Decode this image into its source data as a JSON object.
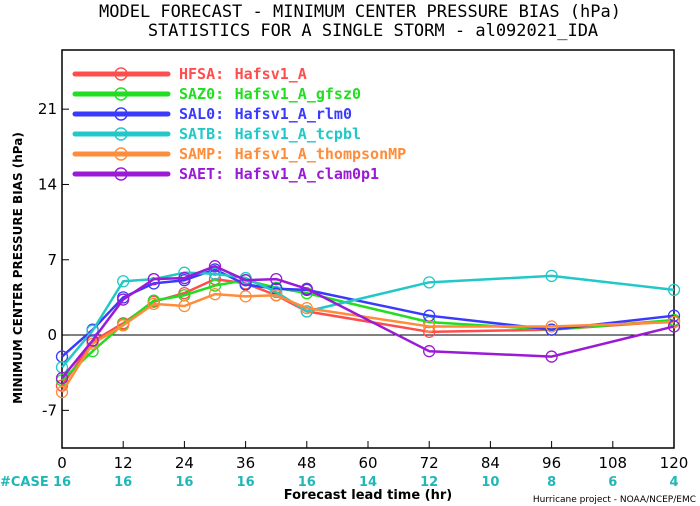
{
  "chart_data": {
    "type": "line",
    "title": "MODEL FORECAST - MINIMUM CENTER PRESSURE BIAS (hPa)",
    "subtitle": "STATISTICS FOR A SINGLE STORM - al092021_IDA",
    "xlabel": "Forecast lead time (hr)",
    "ylabel": "MINIMUM CENTER PRESSURE BIAS (hPa)",
    "xlim": [
      0,
      120
    ],
    "ylim": [
      -10.5,
      26.5
    ],
    "x_ticks": [
      0,
      12,
      24,
      36,
      48,
      60,
      72,
      84,
      96,
      108,
      120
    ],
    "y_ticks": [
      -7,
      0,
      7,
      14,
      21
    ],
    "zero_line": true,
    "legend_position": "top-left",
    "case_label": "#CASE",
    "case_counts": [
      16,
      16,
      16,
      16,
      16,
      14,
      12,
      10,
      8,
      6,
      4
    ],
    "credit": "Hurricane project - NOAA/NCEP/EMC",
    "series": [
      {
        "code": "HFSA:",
        "name": "Hafsv1_A",
        "color": "#ff4d4d",
        "x": [
          0,
          6,
          12,
          18,
          24,
          30,
          36,
          42,
          48,
          72,
          96,
          120
        ],
        "y": [
          -4.7,
          -0.6,
          1.1,
          3.1,
          3.9,
          5.2,
          4.8,
          3.7,
          2.2,
          0.3,
          0.5,
          1.3
        ]
      },
      {
        "code": "SAZ0:",
        "name": "Hafsv1_A_gfsz0",
        "color": "#22dd22",
        "x": [
          0,
          6,
          12,
          18,
          24,
          30,
          36,
          42,
          48,
          72,
          96,
          120
        ],
        "y": [
          -4.2,
          -1.5,
          1.0,
          3.2,
          3.7,
          4.6,
          5.1,
          4.4,
          3.9,
          1.2,
          0.5,
          1.4
        ]
      },
      {
        "code": "SAL0:",
        "name": "Hafsv1_A_rlm0",
        "color": "#3a3aff",
        "x": [
          0,
          6,
          12,
          18,
          24,
          30,
          36,
          42,
          48,
          72,
          96,
          120
        ],
        "y": [
          -2.0,
          0.5,
          3.5,
          4.8,
          5.1,
          6.1,
          4.7,
          4.3,
          4.2,
          1.8,
          0.5,
          1.8
        ]
      },
      {
        "code": "SATB:",
        "name": "Hafsv1_A_tcpbl",
        "color": "#22c8c8",
        "x": [
          0,
          6,
          12,
          18,
          24,
          30,
          36,
          42,
          48,
          72,
          96,
          120
        ],
        "y": [
          -3.0,
          0.4,
          5.0,
          5.2,
          5.8,
          5.7,
          5.3,
          4.0,
          2.2,
          4.9,
          5.5,
          4.2
        ]
      },
      {
        "code": "SAMP:",
        "name": "Hafsv1_A_thompsonMP",
        "color": "#ff8c3a",
        "x": [
          0,
          6,
          12,
          18,
          24,
          30,
          36,
          42,
          48,
          72,
          96,
          120
        ],
        "y": [
          -5.3,
          -0.8,
          0.9,
          2.9,
          2.7,
          3.8,
          3.6,
          3.7,
          2.5,
          0.8,
          0.8,
          1.2
        ]
      },
      {
        "code": "SAET:",
        "name": "Hafsv1_A_clam0p1",
        "color": "#9a1ad6",
        "x": [
          0,
          6,
          12,
          18,
          24,
          30,
          36,
          42,
          48,
          72,
          96,
          120
        ],
        "y": [
          -4.0,
          -0.5,
          3.3,
          5.2,
          5.3,
          6.4,
          5.1,
          5.2,
          4.3,
          -1.5,
          -2.0,
          0.8
        ]
      }
    ]
  }
}
